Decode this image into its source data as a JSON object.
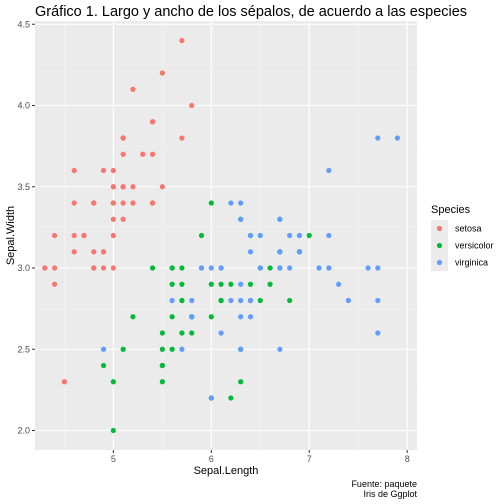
{
  "chart_data": {
    "type": "scatter",
    "title": "Gráfico 1. Largo y ancho de los sépalos,  de acuerdo a las especies",
    "xlabel": "Sepal.Length",
    "ylabel": "Sepal.Width",
    "xlim": [
      4.2,
      8.1
    ],
    "ylim": [
      1.88,
      4.52
    ],
    "xticks": [
      5,
      6,
      7,
      8
    ],
    "yticks": [
      2.0,
      2.5,
      3.0,
      3.5,
      4.0,
      4.5
    ],
    "ytick_labels": [
      "2.0",
      "2.5",
      "3.0",
      "3.5",
      "4.0",
      "4.5"
    ],
    "grid": true,
    "legend": {
      "title": "Species",
      "position": "right"
    },
    "caption": [
      "Fuente: paquete",
      "Iris de Ggplot"
    ],
    "series": [
      {
        "name": "setosa",
        "color": "#F8766D",
        "points": [
          [
            5.1,
            3.5
          ],
          [
            4.9,
            3.0
          ],
          [
            4.7,
            3.2
          ],
          [
            4.6,
            3.1
          ],
          [
            5.0,
            3.6
          ],
          [
            5.4,
            3.9
          ],
          [
            4.6,
            3.4
          ],
          [
            5.0,
            3.4
          ],
          [
            4.4,
            2.9
          ],
          [
            4.9,
            3.1
          ],
          [
            5.4,
            3.7
          ],
          [
            4.8,
            3.4
          ],
          [
            4.8,
            3.0
          ],
          [
            4.3,
            3.0
          ],
          [
            5.8,
            4.0
          ],
          [
            5.7,
            4.4
          ],
          [
            5.4,
            3.9
          ],
          [
            5.1,
            3.5
          ],
          [
            5.7,
            3.8
          ],
          [
            5.1,
            3.8
          ],
          [
            5.4,
            3.4
          ],
          [
            5.1,
            3.7
          ],
          [
            4.6,
            3.6
          ],
          [
            5.1,
            3.3
          ],
          [
            4.8,
            3.4
          ],
          [
            5.0,
            3.0
          ],
          [
            5.0,
            3.4
          ],
          [
            5.2,
            3.5
          ],
          [
            5.2,
            3.4
          ],
          [
            4.7,
            3.2
          ],
          [
            4.8,
            3.1
          ],
          [
            5.4,
            3.4
          ],
          [
            5.2,
            4.1
          ],
          [
            5.5,
            4.2
          ],
          [
            4.9,
            3.1
          ],
          [
            5.0,
            3.2
          ],
          [
            5.5,
            3.5
          ],
          [
            4.9,
            3.6
          ],
          [
            4.4,
            3.0
          ],
          [
            5.1,
            3.4
          ],
          [
            5.0,
            3.5
          ],
          [
            4.5,
            2.3
          ],
          [
            4.4,
            3.2
          ],
          [
            5.0,
            3.5
          ],
          [
            5.1,
            3.8
          ],
          [
            4.8,
            3.0
          ],
          [
            5.1,
            3.8
          ],
          [
            4.6,
            3.2
          ],
          [
            5.3,
            3.7
          ],
          [
            5.0,
            3.3
          ]
        ]
      },
      {
        "name": "versicolor",
        "color": "#00BA38",
        "points": [
          [
            7.0,
            3.2
          ],
          [
            6.4,
            3.2
          ],
          [
            6.9,
            3.1
          ],
          [
            5.5,
            2.3
          ],
          [
            6.5,
            2.8
          ],
          [
            5.7,
            2.8
          ],
          [
            6.3,
            3.3
          ],
          [
            4.9,
            2.4
          ],
          [
            6.6,
            2.9
          ],
          [
            5.2,
            2.7
          ],
          [
            5.0,
            2.0
          ],
          [
            5.9,
            3.0
          ],
          [
            6.0,
            2.2
          ],
          [
            6.1,
            2.9
          ],
          [
            5.6,
            2.9
          ],
          [
            6.7,
            3.1
          ],
          [
            5.6,
            3.0
          ],
          [
            5.8,
            2.7
          ],
          [
            6.2,
            2.2
          ],
          [
            5.6,
            2.5
          ],
          [
            5.9,
            3.2
          ],
          [
            6.1,
            2.8
          ],
          [
            6.3,
            2.5
          ],
          [
            6.1,
            2.8
          ],
          [
            6.4,
            2.9
          ],
          [
            6.6,
            3.0
          ],
          [
            6.8,
            2.8
          ],
          [
            6.7,
            3.0
          ],
          [
            6.0,
            2.9
          ],
          [
            5.7,
            2.6
          ],
          [
            5.5,
            2.4
          ],
          [
            5.5,
            2.4
          ],
          [
            5.8,
            2.7
          ],
          [
            6.0,
            2.7
          ],
          [
            5.4,
            3.0
          ],
          [
            6.0,
            3.4
          ],
          [
            6.7,
            3.1
          ],
          [
            6.3,
            2.3
          ],
          [
            5.6,
            3.0
          ],
          [
            5.5,
            2.5
          ],
          [
            5.5,
            2.6
          ],
          [
            6.1,
            3.0
          ],
          [
            5.8,
            2.6
          ],
          [
            5.0,
            2.3
          ],
          [
            5.6,
            2.7
          ],
          [
            5.7,
            3.0
          ],
          [
            5.7,
            2.9
          ],
          [
            6.2,
            2.9
          ],
          [
            5.1,
            2.5
          ],
          [
            5.7,
            2.8
          ]
        ]
      },
      {
        "name": "virginica",
        "color": "#619CFF",
        "points": [
          [
            6.3,
            3.3
          ],
          [
            5.8,
            2.7
          ],
          [
            7.1,
            3.0
          ],
          [
            6.3,
            2.9
          ],
          [
            6.5,
            3.0
          ],
          [
            7.6,
            3.0
          ],
          [
            4.9,
            2.5
          ],
          [
            7.3,
            2.9
          ],
          [
            6.7,
            2.5
          ],
          [
            7.2,
            3.6
          ],
          [
            6.5,
            3.2
          ],
          [
            6.4,
            2.7
          ],
          [
            6.8,
            3.0
          ],
          [
            5.7,
            2.5
          ],
          [
            5.8,
            2.8
          ],
          [
            6.4,
            3.2
          ],
          [
            6.5,
            3.0
          ],
          [
            7.7,
            3.8
          ],
          [
            7.7,
            2.6
          ],
          [
            6.0,
            2.2
          ],
          [
            6.9,
            3.2
          ],
          [
            5.6,
            2.8
          ],
          [
            7.7,
            2.8
          ],
          [
            6.3,
            2.7
          ],
          [
            6.7,
            3.3
          ],
          [
            7.2,
            3.2
          ],
          [
            6.2,
            2.8
          ],
          [
            6.1,
            3.0
          ],
          [
            6.4,
            2.8
          ],
          [
            7.2,
            3.0
          ],
          [
            7.4,
            2.8
          ],
          [
            7.9,
            3.8
          ],
          [
            6.4,
            2.8
          ],
          [
            6.3,
            2.8
          ],
          [
            6.1,
            2.6
          ],
          [
            7.7,
            3.0
          ],
          [
            6.3,
            3.4
          ],
          [
            6.4,
            3.1
          ],
          [
            6.0,
            3.0
          ],
          [
            6.9,
            3.1
          ],
          [
            6.7,
            3.1
          ],
          [
            6.9,
            3.1
          ],
          [
            5.8,
            2.7
          ],
          [
            6.8,
            3.2
          ],
          [
            6.7,
            3.3
          ],
          [
            6.7,
            3.0
          ],
          [
            6.3,
            2.5
          ],
          [
            6.5,
            3.0
          ],
          [
            6.2,
            3.4
          ],
          [
            5.9,
            3.0
          ]
        ]
      }
    ]
  }
}
